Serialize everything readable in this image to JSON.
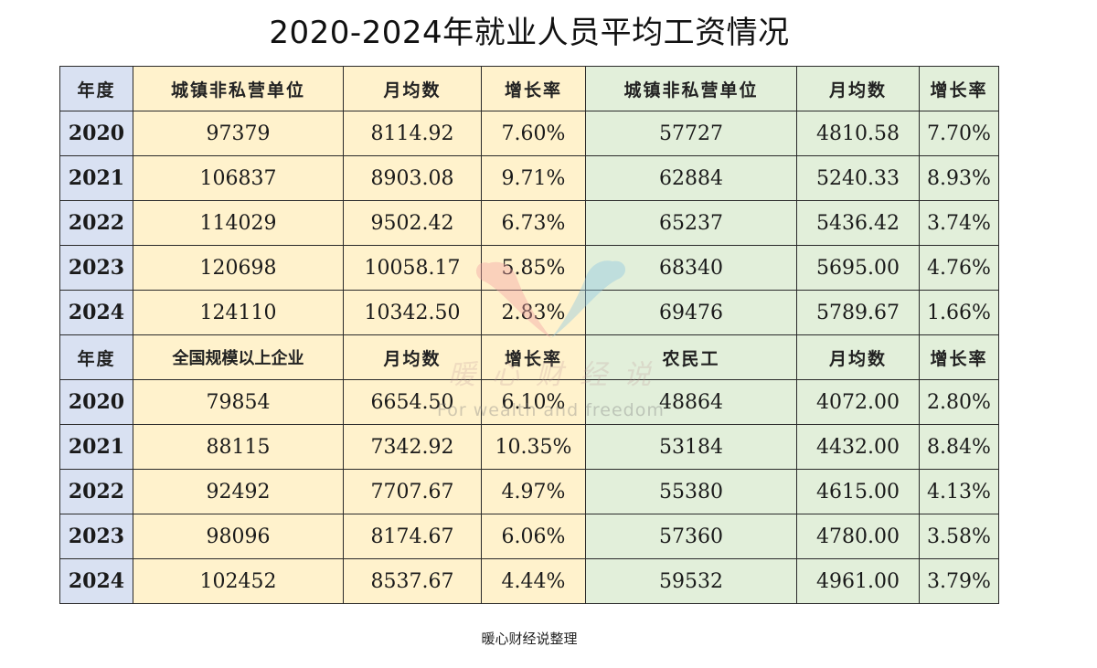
{
  "title": "2020-2024年就业人员平均工资情况",
  "footer": "暖心财经说整理",
  "watermark": {
    "icon": "heart-bird-logo-icon",
    "text_cn": "暖心财经说",
    "text_en": "For wealth and freedom"
  },
  "colors": {
    "year_column": "#d9e1f2",
    "left_group": "#fff2cc",
    "right_group": "#e2efda",
    "border": "#2a2a2a"
  },
  "section1": {
    "headers": [
      "年度",
      "城镇非私营单位",
      "月均数",
      "增长率",
      "城镇非私营单位",
      "月均数",
      "增长率"
    ],
    "rows": [
      [
        "2020",
        "97379",
        "8114.92",
        "7.60%",
        "57727",
        "4810.58",
        "7.70%"
      ],
      [
        "2021",
        "106837",
        "8903.08",
        "9.71%",
        "62884",
        "5240.33",
        "8.93%"
      ],
      [
        "2022",
        "114029",
        "9502.42",
        "6.73%",
        "65237",
        "5436.42",
        "3.74%"
      ],
      [
        "2023",
        "120698",
        "10058.17",
        "5.85%",
        "68340",
        "5695.00",
        "4.76%"
      ],
      [
        "2024",
        "124110",
        "10342.50",
        "2.83%",
        "69476",
        "5789.67",
        "1.66%"
      ]
    ]
  },
  "section2": {
    "headers": [
      "年度",
      "全国规模以上企业",
      "月均数",
      "增长率",
      "农民工",
      "月均数",
      "增长率"
    ],
    "rows": [
      [
        "2020",
        "79854",
        "6654.50",
        "6.10%",
        "48864",
        "4072.00",
        "2.80%"
      ],
      [
        "2021",
        "88115",
        "7342.92",
        "10.35%",
        "53184",
        "4432.00",
        "8.84%"
      ],
      [
        "2022",
        "92492",
        "7707.67",
        "4.97%",
        "55380",
        "4615.00",
        "4.13%"
      ],
      [
        "2023",
        "98096",
        "8174.67",
        "6.06%",
        "57360",
        "4780.00",
        "3.58%"
      ],
      [
        "2024",
        "102452",
        "8537.67",
        "4.44%",
        "59532",
        "4961.00",
        "3.79%"
      ]
    ]
  },
  "chart_data": {
    "type": "table",
    "title": "2020-2024年就业人员平均工资情况",
    "categories": [
      "2020",
      "2021",
      "2022",
      "2023",
      "2024"
    ],
    "tables": [
      {
        "columns": [
          "年度",
          "城镇非私营单位",
          "月均数",
          "增长率",
          "城镇非私营单位",
          "月均数",
          "增长率"
        ],
        "series": [
          {
            "name": "城镇非私营单位(年)",
            "values": [
              97379,
              106837,
              114029,
              120698,
              124110
            ]
          },
          {
            "name": "城镇非私营单位 月均数",
            "values": [
              8114.92,
              8903.08,
              9502.42,
              10058.17,
              10342.5
            ]
          },
          {
            "name": "城镇非私营单位 增长率(%)",
            "values": [
              7.6,
              9.71,
              6.73,
              5.85,
              2.83
            ]
          },
          {
            "name": "城镇非私营单位(年) 右组",
            "values": [
              57727,
              62884,
              65237,
              68340,
              69476
            ]
          },
          {
            "name": "右组 月均数",
            "values": [
              4810.58,
              5240.33,
              5436.42,
              5695.0,
              5789.67
            ]
          },
          {
            "name": "右组 增长率(%)",
            "values": [
              7.7,
              8.93,
              3.74,
              4.76,
              1.66
            ]
          }
        ]
      },
      {
        "columns": [
          "年度",
          "全国规模以上企业",
          "月均数",
          "增长率",
          "农民工",
          "月均数",
          "增长率"
        ],
        "series": [
          {
            "name": "全国规模以上企业(年)",
            "values": [
              79854,
              88115,
              92492,
              98096,
              102452
            ]
          },
          {
            "name": "全国规模以上企业 月均数",
            "values": [
              6654.5,
              7342.92,
              7707.67,
              8174.67,
              8537.67
            ]
          },
          {
            "name": "全国规模以上企业 增长率(%)",
            "values": [
              6.1,
              10.35,
              4.97,
              6.06,
              4.44
            ]
          },
          {
            "name": "农民工(年)",
            "values": [
              48864,
              53184,
              55380,
              57360,
              59532
            ]
          },
          {
            "name": "农民工 月均数",
            "values": [
              4072.0,
              4432.0,
              4615.0,
              4780.0,
              4961.0
            ]
          },
          {
            "name": "农民工 增长率(%)",
            "values": [
              2.8,
              8.84,
              4.13,
              3.58,
              3.79
            ]
          }
        ]
      }
    ]
  }
}
